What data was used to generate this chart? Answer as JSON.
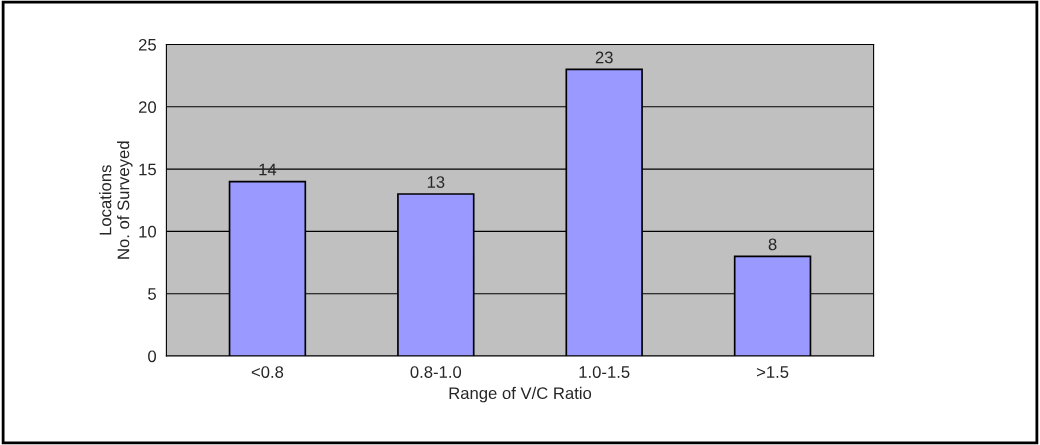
{
  "chart_data": {
    "type": "bar",
    "categories": [
      "<0.8",
      "0.8-1.0",
      "1.0-1.5",
      ">1.5"
    ],
    "values": [
      14,
      13,
      23,
      8
    ],
    "color": "#9999ff",
    "xlabel": "Range of V/C Ratio",
    "ylabel": "Locations\nNo. of Surveyed",
    "ylim": [
      0,
      25
    ],
    "yticks": [
      0,
      5,
      10,
      15,
      20,
      25
    ],
    "grid": "y",
    "data_labels": true,
    "legend": false
  }
}
